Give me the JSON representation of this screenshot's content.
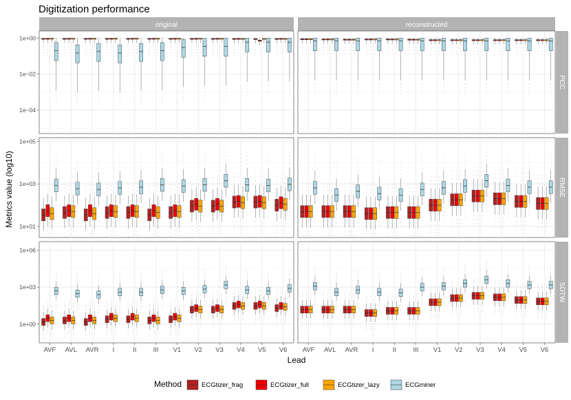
{
  "chart_data": {
    "type": "boxplot",
    "title": "Digitization performance",
    "xlabel": "Lead",
    "ylabel": "Metrics value (log10)",
    "facet_columns": [
      "original",
      "reconstructed"
    ],
    "facet_rows": [
      "PCC",
      "RMSE",
      "SDTW"
    ],
    "categories": [
      "AVF",
      "AVL",
      "AVR",
      "I",
      "II",
      "III",
      "V1",
      "V2",
      "V3",
      "V4",
      "V5",
      "V6"
    ],
    "y_scale": "log10",
    "legend": {
      "title": "Method",
      "position": "bottom",
      "entries": [
        "ECGtizer_frag",
        "ECGtizer_full",
        "ECGtizer_lazy",
        "ECGminer"
      ]
    },
    "colors": {
      "ECGtizer_frag": "#b22222",
      "ECGtizer_full": "#ee0000",
      "ECGtizer_lazy": "#ffa500",
      "ECGminer": "#add8e6"
    },
    "rows": {
      "PCC": {
        "ylim": [
          5e-06,
          2.5
        ],
        "tick_values": [
          1,
          0.01,
          0.0001
        ],
        "tick_labels": [
          "1e+00",
          "1e−02",
          "1e−04"
        ],
        "original": {
          "ECGtizer_frag": [
            0.95,
            0.95,
            0.95,
            0.95,
            0.95,
            0.95,
            0.95,
            0.95,
            0.95,
            0.93,
            0.92,
            0.93
          ],
          "ECGtizer_full": [
            0.96,
            0.96,
            0.96,
            0.96,
            0.96,
            0.96,
            0.96,
            0.96,
            0.96,
            0.95,
            0.75,
            0.95
          ],
          "ECGtizer_lazy": [
            0.96,
            0.96,
            0.96,
            0.96,
            0.96,
            0.96,
            0.96,
            0.96,
            0.96,
            0.94,
            0.94,
            0.94
          ],
          "ECGminer": [
            0.2,
            0.15,
            0.18,
            0.15,
            0.18,
            0.2,
            0.3,
            0.35,
            0.35,
            0.6,
            0.6,
            0.6
          ]
        },
        "reconstructed": {
          "ECGtizer_frag": [
            0.9,
            0.88,
            0.85,
            0.88,
            0.88,
            0.85,
            0.8,
            0.8,
            0.8,
            0.8,
            0.8,
            0.8
          ],
          "ECGtizer_full": [
            0.9,
            0.88,
            0.85,
            0.88,
            0.88,
            0.85,
            0.8,
            0.8,
            0.8,
            0.8,
            0.8,
            0.8
          ],
          "ECGtizer_lazy": [
            0.9,
            0.88,
            0.85,
            0.88,
            0.88,
            0.85,
            0.8,
            0.8,
            0.8,
            0.8,
            0.8,
            0.8
          ],
          "ECGminer": [
            0.7,
            0.7,
            0.7,
            0.7,
            0.7,
            0.7,
            0.7,
            0.7,
            0.7,
            0.7,
            0.7,
            0.7
          ]
        }
      },
      "RMSE": {
        "ylim": [
          3,
          150000
        ],
        "tick_values": [
          10,
          1000,
          100000
        ],
        "tick_labels": [
          "1e+01",
          "1e+03",
          "1e+05"
        ],
        "original": {
          "ECGtizer_frag": [
            35,
            45,
            35,
            45,
            45,
            35,
            45,
            90,
            90,
            140,
            140,
            100
          ],
          "ECGtizer_full": [
            55,
            55,
            55,
            55,
            55,
            55,
            55,
            110,
            110,
            150,
            150,
            130
          ],
          "ECGtizer_lazy": [
            40,
            50,
            40,
            50,
            50,
            45,
            50,
            90,
            90,
            130,
            130,
            110
          ],
          "ECGminer": [
            850,
            600,
            550,
            650,
            700,
            900,
            800,
            900,
            1400,
            900,
            850,
            950
          ]
        },
        "reconstructed": {
          "ECGtizer_frag": [
            50,
            50,
            50,
            40,
            45,
            45,
            100,
            180,
            270,
            200,
            150,
            120
          ],
          "ECGtizer_full": [
            50,
            50,
            50,
            40,
            45,
            45,
            100,
            180,
            270,
            200,
            150,
            120
          ],
          "ECGtizer_lazy": [
            50,
            50,
            50,
            40,
            45,
            45,
            100,
            180,
            270,
            200,
            150,
            120
          ],
          "ECGminer": [
            650,
            300,
            450,
            350,
            300,
            550,
            650,
            800,
            1400,
            850,
            700,
            700
          ]
        }
      },
      "SDTW": {
        "ylim": [
          0.03,
          5000000
        ],
        "tick_values": [
          1,
          1000,
          1000000
        ],
        "tick_labels": [
          "1e+00",
          "1e+03",
          "1e+06"
        ],
        "original": {
          "ECGtizer_frag": [
            1.5,
            2,
            1.5,
            2.5,
            2.5,
            2,
            2.5,
            15,
            15,
            30,
            30,
            20
          ],
          "ECGtizer_full": [
            3,
            3,
            3,
            4,
            4,
            3,
            4,
            20,
            20,
            40,
            40,
            30
          ],
          "ECGtizer_lazy": [
            2,
            2,
            2,
            3,
            3,
            2,
            3,
            15,
            15,
            30,
            30,
            25
          ],
          "ECGminer": [
            500,
            300,
            250,
            400,
            400,
            600,
            500,
            700,
            1500,
            600,
            500,
            800
          ]
        },
        "reconstructed": {
          "ECGtizer_frag": [
            15,
            15,
            15,
            8,
            12,
            12,
            60,
            130,
            200,
            150,
            90,
            70
          ],
          "ECGtizer_full": [
            15,
            15,
            15,
            8,
            12,
            12,
            60,
            130,
            200,
            150,
            90,
            70
          ],
          "ECGtizer_lazy": [
            15,
            15,
            15,
            8,
            12,
            12,
            60,
            130,
            200,
            150,
            90,
            70
          ],
          "ECGminer": [
            1200,
            400,
            600,
            400,
            350,
            1000,
            1200,
            2000,
            4000,
            2000,
            1500,
            1500
          ]
        }
      }
    }
  }
}
